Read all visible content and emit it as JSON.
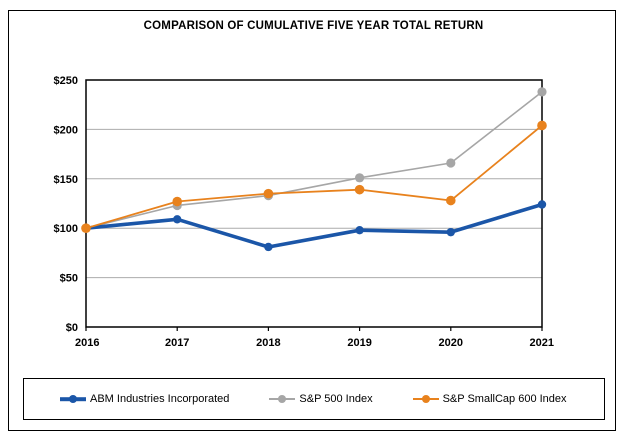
{
  "chart_data": {
    "type": "line",
    "title": "COMPARISON OF CUMULATIVE FIVE YEAR TOTAL RETURN",
    "categories": [
      "2016",
      "2017",
      "2018",
      "2019",
      "2020",
      "2021"
    ],
    "series": [
      {
        "name": "ABM Industries Incorporated",
        "color": "#1B56A8",
        "values": [
          100,
          109,
          81,
          98,
          96,
          124
        ],
        "line_width": 3.6,
        "marker_radius": 4.2
      },
      {
        "name": "S&P 500 Index",
        "color": "#A6A6A6",
        "values": [
          100,
          123,
          133,
          151,
          166,
          238
        ],
        "line_width": 1.6,
        "marker_radius": 4.6
      },
      {
        "name": "S&P SmallCap 600 Index",
        "color": "#E8821D",
        "values": [
          100,
          127,
          135,
          139,
          128,
          204
        ],
        "line_width": 1.8,
        "marker_radius": 4.8
      }
    ],
    "ylim": [
      0,
      250
    ],
    "y_ticks": [
      "$0",
      "$50",
      "$100",
      "$150",
      "$200",
      "$250"
    ],
    "y_tick_values": [
      0,
      50,
      100,
      150,
      200,
      250
    ],
    "xlabel": "",
    "ylabel": "",
    "grid": "horizontal",
    "gridline_color": "#ABABAB",
    "axis_color": "#000000",
    "legend_position": "bottom",
    "draw_order": [
      1,
      0,
      2
    ]
  }
}
